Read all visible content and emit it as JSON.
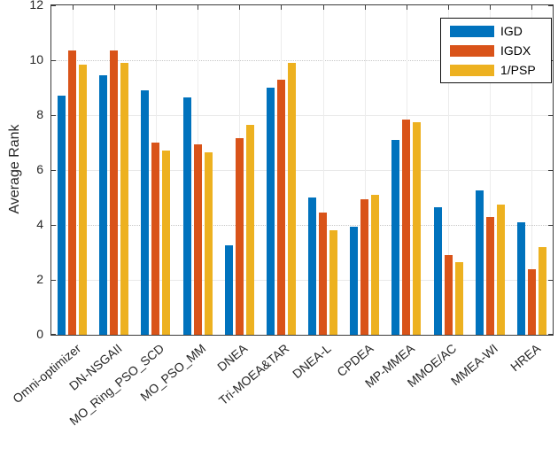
{
  "chart_data": {
    "type": "bar",
    "title": "",
    "xlabel": "",
    "ylabel": "Average Rank",
    "ylim": [
      0,
      12
    ],
    "yticks": [
      0,
      2,
      4,
      6,
      8,
      10,
      12
    ],
    "grid": true,
    "legend_position": "top-right",
    "categories": [
      "Omni-optimizer",
      "DN-NSGAII",
      "MO_Ring_PSO_SCD",
      "MO_PSO_MM",
      "DNEA",
      "Tri-MOEA&TAR",
      "DNEA-L",
      "CPDEA",
      "MP-MMEA",
      "MMOE/AC",
      "MMEA-WI",
      "HREA"
    ],
    "series": [
      {
        "name": "IGD",
        "color": "#0072BD",
        "values": [
          8.7,
          9.45,
          8.9,
          8.65,
          3.25,
          9.0,
          5.0,
          3.95,
          7.1,
          4.65,
          5.25,
          4.1
        ]
      },
      {
        "name": "IGDX",
        "color": "#D95319",
        "values": [
          10.35,
          10.35,
          7.0,
          6.95,
          7.15,
          9.3,
          4.45,
          4.95,
          7.85,
          2.9,
          4.3,
          2.4
        ]
      },
      {
        "name": "1/PSP",
        "color": "#EDB120",
        "values": [
          9.85,
          9.9,
          6.7,
          6.65,
          7.65,
          9.9,
          3.8,
          5.1,
          7.75,
          2.65,
          4.75,
          3.2
        ]
      }
    ],
    "axis_color": "#262626"
  }
}
